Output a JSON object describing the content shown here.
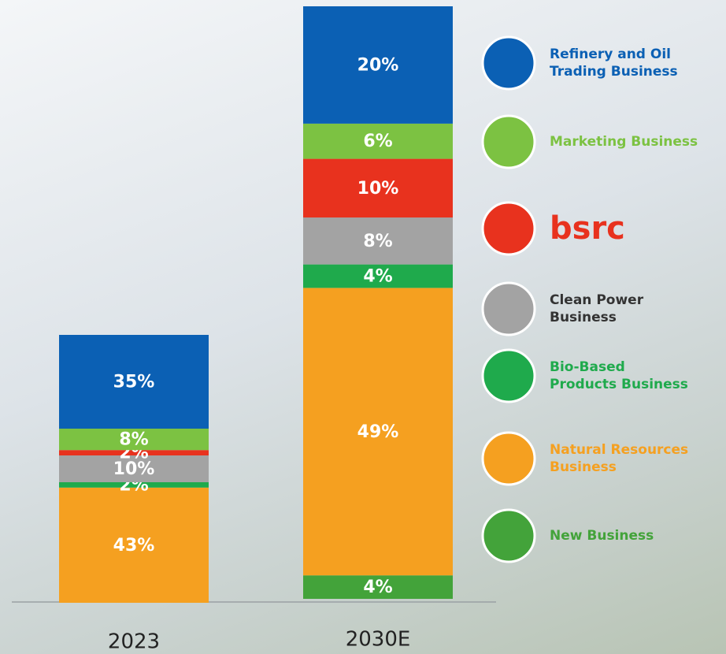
{
  "chart_data": {
    "type": "stacked_bar",
    "categories": [
      "2023",
      "2030E"
    ],
    "series": [
      {
        "name": "Refinery and Oil Trading Business",
        "color": "#0b60b4",
        "values": [
          35,
          20
        ],
        "value_labels": [
          "35%",
          "20%"
        ]
      },
      {
        "name": "Marketing Business",
        "color": "#7cc242",
        "values": [
          8,
          6
        ],
        "value_labels": [
          "8%",
          "6%"
        ]
      },
      {
        "name": "bsrc",
        "color": "#e8321e",
        "values": [
          2,
          10
        ],
        "value_labels": [
          "2%",
          "10%"
        ]
      },
      {
        "name": "Clean Power Business",
        "color": "#a3a3a3",
        "values": [
          10,
          8
        ],
        "value_labels": [
          "10%",
          "8%"
        ]
      },
      {
        "name": "Bio-Based Products Business",
        "color": "#1faa4c",
        "values": [
          2,
          4
        ],
        "value_labels": [
          "2%",
          "4%"
        ]
      },
      {
        "name": "Natural Resources Business",
        "color": "#f5a020",
        "values": [
          43,
          49
        ],
        "value_labels": [
          "43%",
          "49%"
        ]
      },
      {
        "name": "New Business",
        "color": "#43a33a",
        "values": [
          null,
          4
        ],
        "value_labels": [
          null,
          "4%"
        ]
      }
    ]
  }
}
